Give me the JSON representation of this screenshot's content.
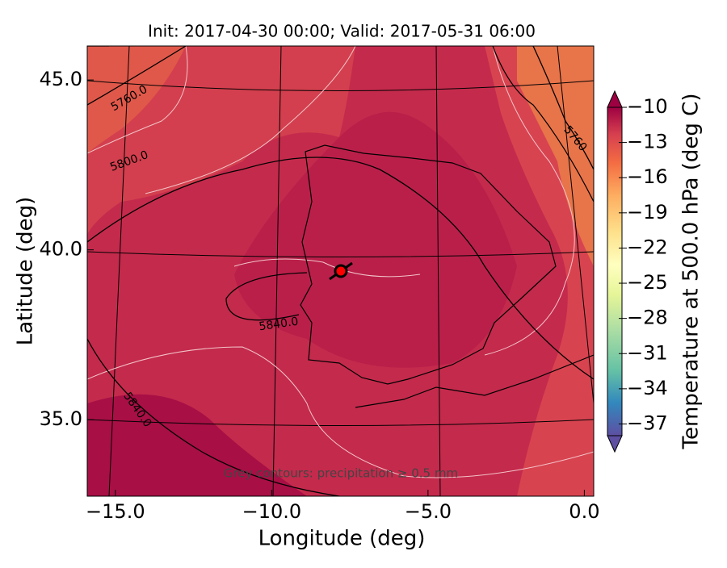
{
  "chart_data": {
    "type": "map",
    "title": "Init: 2017-04-30 00:00; Valid: 2017-05-31 06:00",
    "x_label": "Longitude (deg)",
    "y_label": "Latitude (deg)",
    "xlim": [
      -15.9,
      0.3
    ],
    "ylim": [
      32.75,
      46.0
    ],
    "xticks": [
      {
        "value": -15,
        "label": "−15.0"
      },
      {
        "value": -10,
        "label": "−10.0"
      },
      {
        "value": -5,
        "label": "−5.0"
      },
      {
        "value": 0,
        "label": "0.0"
      }
    ],
    "yticks": [
      {
        "value": 35,
        "label": "35.0"
      },
      {
        "value": 40,
        "label": "40.0"
      },
      {
        "value": 45,
        "label": "45.0"
      }
    ],
    "colorbar": {
      "label": "Temperature at 500.0 hPa (deg C)",
      "lim": [
        -38,
        -10
      ],
      "ticks": [
        {
          "value": -10,
          "label": "−10"
        },
        {
          "value": -13,
          "label": "−13"
        },
        {
          "value": -16,
          "label": "−16"
        },
        {
          "value": -19,
          "label": "−19"
        },
        {
          "value": -22,
          "label": "−22"
        },
        {
          "value": -25,
          "label": "−25"
        },
        {
          "value": -28,
          "label": "−28"
        },
        {
          "value": -31,
          "label": "−31"
        },
        {
          "value": -34,
          "label": "−34"
        },
        {
          "value": -37,
          "label": "−37"
        }
      ]
    },
    "contour_labels": [
      "5760.0",
      "5800.0",
      "5840.0",
      "5840.0",
      "5760"
    ],
    "annotation": "Grey contours: precipitation ≥ 0.5 mm"
  }
}
